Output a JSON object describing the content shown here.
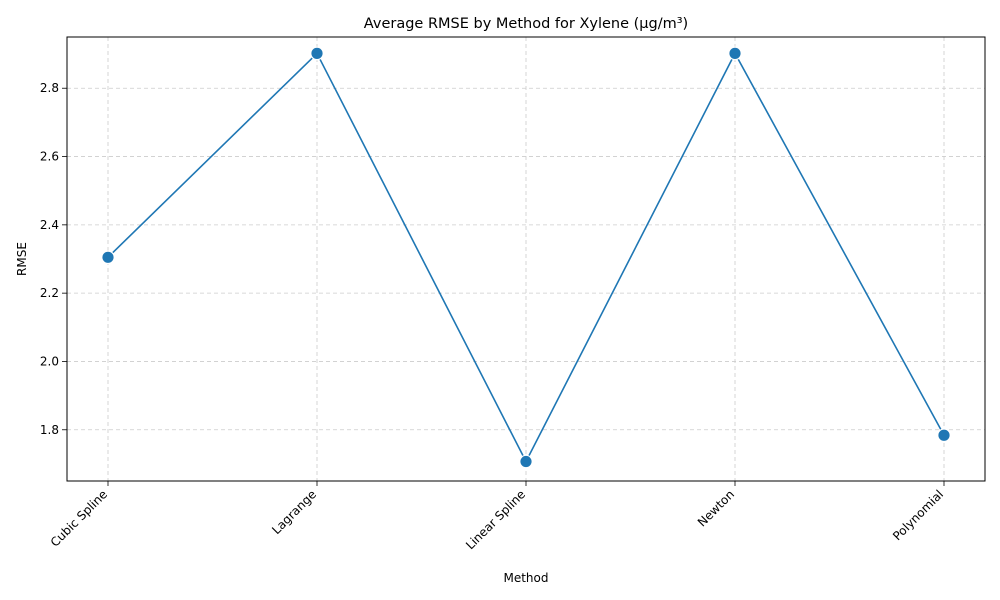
{
  "chart_data": {
    "type": "line",
    "title": "Average RMSE by Method for Xylene (μg/m³)",
    "xlabel": "Method",
    "ylabel": "RMSE",
    "categories": [
      "Cubic Spline",
      "Lagrange",
      "Linear Spline",
      "Newton",
      "Polynomial"
    ],
    "series": [
      {
        "values": [
          2.305,
          2.902,
          1.707,
          2.902,
          1.784
        ]
      }
    ],
    "ylim": [
      1.65,
      2.95
    ],
    "yticks": [
      "1.8",
      "2.0",
      "2.2",
      "2.4",
      "2.6",
      "2.8"
    ],
    "grid": true,
    "legend": "none",
    "colors": {
      "line": "#1f77b4",
      "marker": "#1f77b4",
      "marker_edge": "#ffffff",
      "grid": "#cccccc"
    }
  }
}
